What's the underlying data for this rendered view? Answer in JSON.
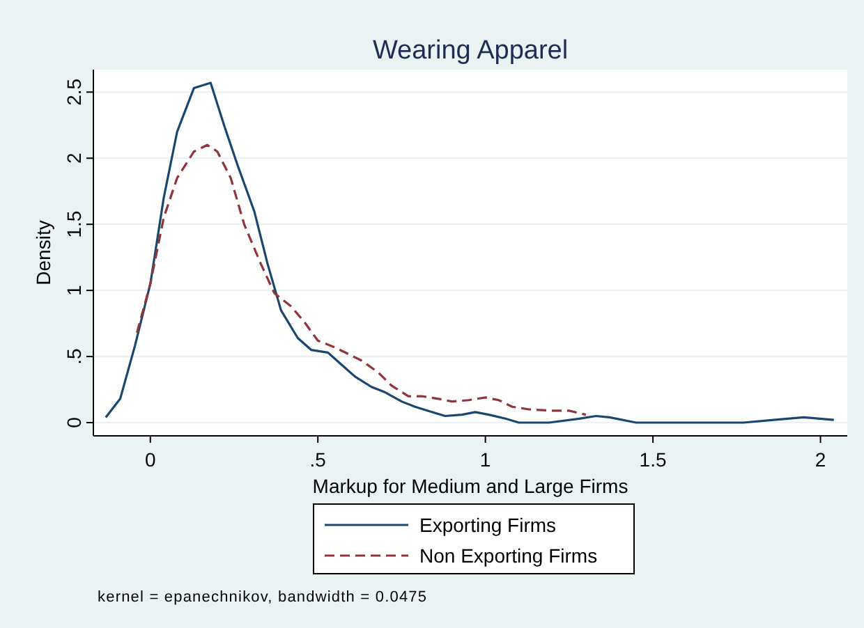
{
  "chart_data": {
    "type": "line",
    "title": "Wearing Apparel",
    "xlabel": "Markup for Medium and Large Firms",
    "ylabel": "Density",
    "annotations": [
      "kernel = epanechnikov, bandwidth = 0.0475"
    ],
    "xlim": [
      -0.17,
      2.08
    ],
    "ylim": [
      -0.1,
      2.67
    ],
    "xticks": [
      0,
      {
        "value": 0.5,
        "label": ".5"
      },
      1,
      1.5,
      2
    ],
    "yticks": [
      0,
      {
        "value": 0.5,
        "label": ".5"
      },
      1,
      1.5,
      2,
      2.5
    ],
    "grid": "y",
    "legend": "bottom",
    "marker": "none",
    "series": [
      {
        "name": "Exporting Firms",
        "color": "#1a476f",
        "line_style": "solid",
        "x": [
          -0.133,
          -0.09,
          -0.046,
          0,
          0.04,
          0.08,
          0.13,
          0.18,
          0.22,
          0.26,
          0.31,
          0.35,
          0.39,
          0.44,
          0.48,
          0.53,
          0.57,
          0.61,
          0.66,
          0.7,
          0.75,
          0.79,
          0.84,
          0.88,
          0.93,
          0.97,
          1.01,
          1.06,
          1.1,
          1.19,
          1.28,
          1.33,
          1.37,
          1.45,
          1.55,
          1.65,
          1.77,
          1.86,
          1.95,
          2.04
        ],
        "values": [
          0.04,
          0.18,
          0.58,
          1.05,
          1.7,
          2.2,
          2.53,
          2.57,
          2.25,
          1.95,
          1.6,
          1.2,
          0.85,
          0.64,
          0.55,
          0.53,
          0.44,
          0.35,
          0.27,
          0.23,
          0.16,
          0.12,
          0.08,
          0.05,
          0.06,
          0.08,
          0.06,
          0.03,
          0,
          0,
          0.03,
          0.05,
          0.04,
          0,
          0,
          0,
          0,
          0.02,
          0.04,
          0.02
        ]
      },
      {
        "name": "Non Exporting Firms",
        "color": "#90353b",
        "line_style": "dashed",
        "x": [
          -0.04,
          0,
          0.04,
          0.08,
          0.13,
          0.17,
          0.2,
          0.24,
          0.28,
          0.33,
          0.37,
          0.42,
          0.46,
          0.5,
          0.55,
          0.59,
          0.63,
          0.68,
          0.72,
          0.77,
          0.81,
          0.86,
          0.9,
          0.95,
          1,
          1.04,
          1.08,
          1.13,
          1.2,
          1.25,
          1.3
        ],
        "values": [
          0.68,
          1.05,
          1.55,
          1.85,
          2.05,
          2.1,
          2.05,
          1.85,
          1.5,
          1.2,
          0.98,
          0.88,
          0.76,
          0.62,
          0.57,
          0.52,
          0.47,
          0.38,
          0.28,
          0.2,
          0.2,
          0.18,
          0.16,
          0.17,
          0.19,
          0.17,
          0.12,
          0.1,
          0.09,
          0.09,
          0.06
        ]
      }
    ]
  }
}
